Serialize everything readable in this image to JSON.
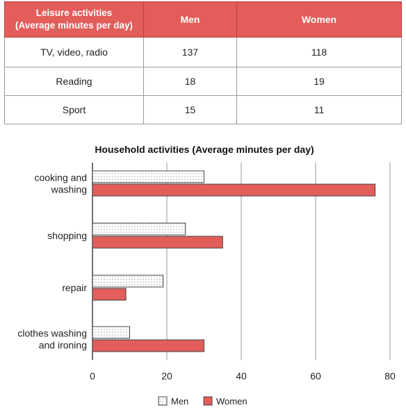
{
  "leisure_table": {
    "header_line1": "Leisure activities",
    "header_line2": "(Average minutes per day)",
    "col_men": "Men",
    "col_women": "Women",
    "rows": [
      {
        "label": "TV, video, radio",
        "men": "137",
        "women": "118"
      },
      {
        "label": "Reading",
        "men": "18",
        "women": "19"
      },
      {
        "label": "Sport",
        "men": "15",
        "women": "11"
      }
    ]
  },
  "colors": {
    "men": "#ffffff",
    "women": "#e35d5b",
    "header": "#e35d5b"
  },
  "chart_data": {
    "type": "bar",
    "orientation": "horizontal",
    "title": "Household activities (Average minutes per day)",
    "categories": [
      [
        "cooking and",
        "washing"
      ],
      [
        "shopping"
      ],
      [
        "repair"
      ],
      [
        "clothes washing",
        "and ironing"
      ]
    ],
    "series": [
      {
        "name": "Men",
        "values": [
          30,
          25,
          19,
          10
        ],
        "pattern": "dotted"
      },
      {
        "name": "Women",
        "values": [
          76,
          35,
          9,
          30
        ],
        "pattern": "solid"
      }
    ],
    "xlim": [
      0,
      80
    ],
    "xticks": [
      "0",
      "20",
      "40",
      "60",
      "80"
    ],
    "grid": true,
    "legend_position": "bottom"
  }
}
